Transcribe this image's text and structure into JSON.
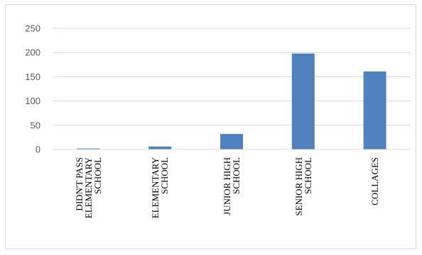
{
  "chart_data": {
    "type": "bar",
    "categories": [
      [
        "DIDN'T PASS",
        "ELEMENTARY",
        "SCHOOL"
      ],
      [
        "ELEMENTARY",
        "SCHOOL"
      ],
      [
        "JUNIOR HIGH",
        "SCHOOL"
      ],
      [
        "SENIOR HIGH",
        "SCHOOL"
      ],
      [
        "COLLAGES"
      ]
    ],
    "values": [
      2,
      6,
      32,
      198,
      161
    ],
    "yticks": [
      "0",
      "50",
      "100",
      "150",
      "200",
      "250"
    ],
    "ylim": [
      0,
      250
    ],
    "title": "",
    "xlabel": "",
    "ylabel": "",
    "grid": true,
    "legend": "none",
    "bar_color": "#4f81bd",
    "grid_color": "#d9d9d9"
  }
}
